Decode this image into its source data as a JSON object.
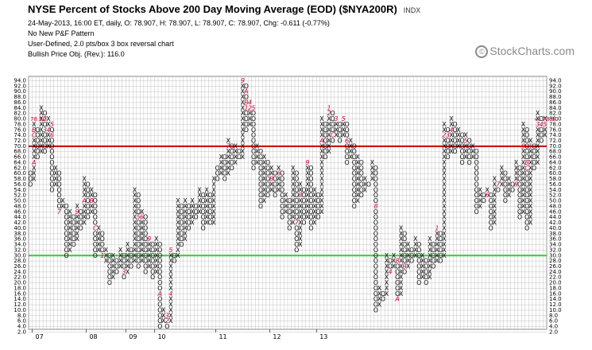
{
  "header": {
    "title": "NYSE Percent of Stocks Above 200 Day Moving Average (EOD) ($NYA200R)",
    "ticker": "INDX",
    "line1": "24-May-2013, 16:00 ET, daily, O: 78.907, H: 78.907, L: 78.907, C: 78.907, Chg: -0.611 (-0.77%)",
    "line2": "No New P&F Pattern",
    "line3": "User-Defined, 2.0 pts/box 3 box reversal chart",
    "line4": "Bullish Price Obj. (Rev.): 116.0"
  },
  "logo": {
    "text": "StockCharts.com",
    "icon": "copyright-icon"
  },
  "colors": {
    "x": "#000000",
    "o": "#000000",
    "month": "#cc0033",
    "red_line": "#cc0000",
    "green_line": "#33cc33",
    "grid": "#b4b4b4"
  },
  "chart_data": {
    "type": "point-and-figure",
    "box_size": 2,
    "reversal": 3,
    "ylim": [
      2,
      94
    ],
    "y_ticks": [
      2,
      4,
      6,
      8,
      10,
      12,
      14,
      16,
      18,
      20,
      22,
      24,
      26,
      28,
      30,
      32,
      34,
      36,
      38,
      40,
      42,
      44,
      46,
      48,
      50,
      52,
      54,
      56,
      58,
      60,
      62,
      64,
      66,
      68,
      70,
      72,
      74,
      76,
      78,
      80,
      82,
      84,
      86,
      88,
      90,
      92,
      94
    ],
    "y_tick_labels": [
      "2.0",
      "4.0",
      "6.0",
      "8.0",
      "10.0",
      "12.0",
      "14.0",
      "16.0",
      "18.0",
      "20.0",
      "22.0",
      "24.0",
      "26.0",
      "28.0",
      "30.0",
      "32.0",
      "34.0",
      "36.0",
      "38.0",
      "40.0",
      "42.0",
      "44.0",
      "46.0",
      "48.0",
      "50.0",
      "52.0",
      "54.0",
      "56.0",
      "58.0",
      "60.0",
      "62.0",
      "64.0",
      "66.0",
      "68.0",
      "70.0",
      "72.0",
      "74.0",
      "76.0",
      "78.0",
      "80.0",
      "82.0",
      "84.0",
      "86.0",
      "88.0",
      "90.0",
      "92.0",
      "94.0"
    ],
    "x_labels": [
      "07",
      "08",
      "09",
      "10",
      "11",
      "12",
      "13"
    ],
    "x_label_columns": [
      1,
      16,
      27,
      35,
      52,
      67,
      80
    ],
    "horizontal_lines": [
      {
        "name": "upper",
        "value": 69,
        "color": "red"
      },
      {
        "name": "lower",
        "value": 29,
        "color": "green"
      }
    ],
    "last_price_label": "78.90",
    "last_price": 78.9,
    "columns": [
      {
        "t": "O",
        "lo": 56,
        "hi": 60
      },
      {
        "t": "X",
        "lo": 58,
        "hi": 78,
        "marks": [
          [
            74,
            "C"
          ],
          [
            64,
            "A"
          ],
          [
            76,
            "B"
          ]
        ]
      },
      {
        "t": "O",
        "lo": 66,
        "hi": 76
      },
      {
        "t": "X",
        "lo": 68,
        "hi": 84
      },
      {
        "t": "O",
        "lo": 68,
        "hi": 82,
        "marks": [
          [
            80,
            "2"
          ],
          [
            76,
            "3"
          ]
        ]
      },
      {
        "t": "X",
        "lo": 70,
        "hi": 80,
        "marks": [
          [
            76,
            "4"
          ]
        ]
      },
      {
        "t": "O",
        "lo": 54,
        "hi": 78,
        "marks": [
          [
            78,
            "5"
          ],
          [
            74,
            "6"
          ]
        ]
      },
      {
        "t": "X",
        "lo": 56,
        "hi": 62
      },
      {
        "t": "O",
        "lo": 46,
        "hi": 60,
        "marks": [
          [
            46,
            "7"
          ]
        ]
      },
      {
        "t": "X",
        "lo": 48,
        "hi": 50
      },
      {
        "t": "O",
        "lo": 30,
        "hi": 48
      },
      {
        "t": "X",
        "lo": 32,
        "hi": 46
      },
      {
        "t": "O",
        "lo": 34,
        "hi": 44
      },
      {
        "t": "X",
        "lo": 36,
        "hi": 48,
        "marks": [
          [
            46,
            "9"
          ]
        ]
      },
      {
        "t": "O",
        "lo": 40,
        "hi": 46
      },
      {
        "t": "X",
        "lo": 42,
        "hi": 58,
        "marks": [
          [
            50,
            "A"
          ]
        ]
      },
      {
        "t": "O",
        "lo": 44,
        "hi": 56
      },
      {
        "t": "X",
        "lo": 46,
        "hi": 54,
        "marks": [
          [
            50,
            "B"
          ]
        ]
      },
      {
        "t": "O",
        "lo": 30,
        "hi": 52,
        "marks": [
          [
            40,
            "C"
          ]
        ]
      },
      {
        "t": "X",
        "lo": 32,
        "hi": 40
      },
      {
        "t": "O",
        "lo": 30,
        "hi": 38,
        "marks": [
          [
            30,
            "1"
          ]
        ]
      },
      {
        "t": "X",
        "lo": 28,
        "hi": 32
      },
      {
        "t": "O",
        "lo": 20,
        "hi": 30
      },
      {
        "t": "X",
        "lo": 22,
        "hi": 30
      },
      {
        "t": "O",
        "lo": 24,
        "hi": 28
      },
      {
        "t": "X",
        "lo": 26,
        "hi": 32
      },
      {
        "t": "O",
        "lo": 22,
        "hi": 30,
        "marks": [
          [
            24,
            "3"
          ]
        ]
      },
      {
        "t": "X",
        "lo": 24,
        "hi": 34
      },
      {
        "t": "O",
        "lo": 26,
        "hi": 32
      },
      {
        "t": "X",
        "lo": 28,
        "hi": 54
      },
      {
        "t": "O",
        "lo": 26,
        "hi": 52,
        "marks": [
          [
            44,
            "5"
          ]
        ]
      },
      {
        "t": "X",
        "lo": 28,
        "hi": 46,
        "marks": [
          [
            44,
            "6"
          ]
        ]
      },
      {
        "t": "O",
        "lo": 24,
        "hi": 44
      },
      {
        "t": "X",
        "lo": 26,
        "hi": 36,
        "marks": [
          [
            36,
            "9"
          ]
        ]
      },
      {
        "t": "O",
        "lo": 22,
        "hi": 34
      },
      {
        "t": "X",
        "lo": 24,
        "hi": 36
      },
      {
        "t": "O",
        "lo": 4,
        "hi": 34,
        "marks": [
          [
            16,
            "A"
          ]
        ]
      },
      {
        "t": "X",
        "lo": 6,
        "hi": 10
      },
      {
        "t": "O",
        "lo": 4,
        "hi": 8,
        "marks": [
          [
            8,
            "3"
          ],
          [
            6,
            "2"
          ]
        ]
      },
      {
        "t": "X",
        "lo": 6,
        "hi": 32,
        "marks": [
          [
            16,
            "4"
          ],
          [
            32,
            "5"
          ]
        ]
      },
      {
        "t": "O",
        "lo": 28,
        "hi": 30
      },
      {
        "t": "X",
        "lo": 30,
        "hi": 50
      },
      {
        "t": "O",
        "lo": 34,
        "hi": 48
      },
      {
        "t": "X",
        "lo": 36,
        "hi": 50
      },
      {
        "t": "O",
        "lo": 40,
        "hi": 48
      },
      {
        "t": "X",
        "lo": 42,
        "hi": 50
      },
      {
        "t": "O",
        "lo": 44,
        "hi": 48
      },
      {
        "t": "X",
        "lo": 46,
        "hi": 54
      },
      {
        "t": "O",
        "lo": 40,
        "hi": 52
      },
      {
        "t": "X",
        "lo": 42,
        "hi": 54
      },
      {
        "t": "O",
        "lo": 42,
        "hi": 52
      },
      {
        "t": "X",
        "lo": 42,
        "hi": 58
      },
      {
        "t": "O",
        "lo": 58,
        "hi": 62
      },
      {
        "t": "X",
        "lo": 60,
        "hi": 66
      },
      {
        "t": "O",
        "lo": 58,
        "hi": 66
      },
      {
        "t": "X",
        "lo": 60,
        "hi": 72,
        "marks": [
          [
            70,
            "7"
          ]
        ]
      },
      {
        "t": "O",
        "lo": 62,
        "hi": 70
      },
      {
        "t": "X",
        "lo": 64,
        "hi": 70
      },
      {
        "t": "O",
        "lo": 66,
        "hi": 68
      },
      {
        "t": "X",
        "lo": 66,
        "hi": 94,
        "marks": [
          [
            94,
            "9"
          ]
        ]
      },
      {
        "t": "O",
        "lo": 76,
        "hi": 92,
        "marks": [
          [
            90,
            "A"
          ],
          [
            86,
            "B"
          ],
          [
            84,
            "1"
          ]
        ]
      },
      {
        "t": "X",
        "lo": 78,
        "hi": 86,
        "marks": [
          [
            86,
            "4"
          ],
          [
            84,
            "2"
          ]
        ]
      },
      {
        "t": "O",
        "lo": 62,
        "hi": 84,
        "marks": [
          [
            84,
            "5"
          ]
        ]
      },
      {
        "t": "X",
        "lo": 64,
        "hi": 70
      },
      {
        "t": "O",
        "lo": 48,
        "hi": 68
      },
      {
        "t": "X",
        "lo": 50,
        "hi": 66
      },
      {
        "t": "O",
        "lo": 52,
        "hi": 64
      },
      {
        "t": "X",
        "lo": 54,
        "hi": 62,
        "marks": [
          [
            58,
            "8"
          ]
        ]
      },
      {
        "t": "O",
        "lo": 52,
        "hi": 60
      },
      {
        "t": "X",
        "lo": 54,
        "hi": 62,
        "marks": [
          [
            60,
            "6"
          ]
        ]
      },
      {
        "t": "O",
        "lo": 44,
        "hi": 60
      },
      {
        "t": "X",
        "lo": 46,
        "hi": 52
      },
      {
        "t": "O",
        "lo": 40,
        "hi": 50
      },
      {
        "t": "X",
        "lo": 42,
        "hi": 62
      },
      {
        "t": "O",
        "lo": 32,
        "hi": 60,
        "marks": [
          [
            42,
            "7"
          ]
        ]
      },
      {
        "t": "X",
        "lo": 34,
        "hi": 56,
        "marks": [
          [
            52,
            "8"
          ]
        ]
      },
      {
        "t": "O",
        "lo": 42,
        "hi": 54
      },
      {
        "t": "X",
        "lo": 44,
        "hi": 64,
        "marks": [
          [
            64,
            "9"
          ]
        ]
      },
      {
        "t": "O",
        "lo": 40,
        "hi": 62
      },
      {
        "t": "X",
        "lo": 42,
        "hi": 54
      },
      {
        "t": "O",
        "lo": 44,
        "hi": 52
      },
      {
        "t": "X",
        "lo": 46,
        "hi": 80,
        "marks": [
          [
            72,
            "A"
          ]
        ]
      },
      {
        "t": "O",
        "lo": 66,
        "hi": 78
      },
      {
        "t": "X",
        "lo": 68,
        "hi": 84,
        "marks": [
          [
            82,
            "2"
          ],
          [
            84,
            "1"
          ]
        ]
      },
      {
        "t": "O",
        "lo": 72,
        "hi": 82,
        "marks": [
          [
            74,
            "C"
          ]
        ]
      },
      {
        "t": "X",
        "lo": 74,
        "hi": 80,
        "marks": [
          [
            80,
            "3"
          ]
        ]
      },
      {
        "t": "O",
        "lo": 72,
        "hi": 78
      },
      {
        "t": "X",
        "lo": 74,
        "hi": 80,
        "marks": [
          [
            80,
            "5"
          ]
        ]
      },
      {
        "t": "O",
        "lo": 64,
        "hi": 78,
        "marks": [
          [
            72,
            "6"
          ]
        ]
      },
      {
        "t": "X",
        "lo": 66,
        "hi": 72
      },
      {
        "t": "O",
        "lo": 48,
        "hi": 70
      },
      {
        "t": "X",
        "lo": 50,
        "hi": 66
      },
      {
        "t": "O",
        "lo": 52,
        "hi": 64
      },
      {
        "t": "X",
        "lo": 54,
        "hi": 58
      },
      {
        "t": "O",
        "lo": 56,
        "hi": 56
      },
      {
        "t": "X",
        "lo": 58,
        "hi": 64
      },
      {
        "t": "O",
        "lo": 10,
        "hi": 62,
        "marks": [
          [
            48,
            "8"
          ]
        ]
      },
      {
        "t": "X",
        "lo": 12,
        "hi": 18
      },
      {
        "t": "O",
        "lo": 14,
        "hi": 16
      },
      {
        "t": "X",
        "lo": 16,
        "hi": 30
      },
      {
        "t": "O",
        "lo": 24,
        "hi": 28,
        "marks": [
          [
            24,
            "4"
          ]
        ]
      },
      {
        "t": "X",
        "lo": 26,
        "hi": 30
      },
      {
        "t": "O",
        "lo": 14,
        "hi": 28,
        "marks": [
          [
            14,
            "A"
          ],
          [
            28,
            "8"
          ]
        ]
      },
      {
        "t": "X",
        "lo": 16,
        "hi": 40
      },
      {
        "t": "O",
        "lo": 24,
        "hi": 38,
        "marks": [
          [
            26,
            "B"
          ]
        ]
      },
      {
        "t": "X",
        "lo": 26,
        "hi": 34
      },
      {
        "t": "O",
        "lo": 28,
        "hi": 32
      },
      {
        "t": "X",
        "lo": 30,
        "hi": 36
      },
      {
        "t": "O",
        "lo": 20,
        "hi": 34
      },
      {
        "t": "X",
        "lo": 22,
        "hi": 30
      },
      {
        "t": "O",
        "lo": 20,
        "hi": 28,
        "marks": [
          [
            30,
            "C"
          ]
        ]
      },
      {
        "t": "X",
        "lo": 22,
        "hi": 36
      },
      {
        "t": "O",
        "lo": 26,
        "hi": 34
      },
      {
        "t": "X",
        "lo": 28,
        "hi": 40,
        "marks": [
          [
            40,
            "1"
          ]
        ]
      },
      {
        "t": "O",
        "lo": 28,
        "hi": 38
      },
      {
        "t": "X",
        "lo": 30,
        "hi": 78,
        "marks": [
          [
            74,
            "2"
          ]
        ]
      },
      {
        "t": "O",
        "lo": 66,
        "hi": 76,
        "marks": [
          [
            74,
            "3"
          ]
        ]
      },
      {
        "t": "X",
        "lo": 68,
        "hi": 80,
        "marks": [
          [
            76,
            "4"
          ]
        ]
      },
      {
        "t": "O",
        "lo": 68,
        "hi": 78
      },
      {
        "t": "X",
        "lo": 70,
        "hi": 76
      },
      {
        "t": "O",
        "lo": 64,
        "hi": 74
      },
      {
        "t": "X",
        "lo": 66,
        "hi": 74,
        "marks": [
          [
            72,
            "5"
          ]
        ]
      },
      {
        "t": "O",
        "lo": 64,
        "hi": 72
      },
      {
        "t": "X",
        "lo": 66,
        "hi": 70
      },
      {
        "t": "O",
        "lo": 46,
        "hi": 68
      },
      {
        "t": "X",
        "lo": 48,
        "hi": 54
      },
      {
        "t": "O",
        "lo": 50,
        "hi": 52
      },
      {
        "t": "X",
        "lo": 52,
        "hi": 54,
        "marks": [
          [
            52,
            "6"
          ]
        ]
      },
      {
        "t": "O",
        "lo": 40,
        "hi": 52
      },
      {
        "t": "X",
        "lo": 42,
        "hi": 58
      },
      {
        "t": "O",
        "lo": 54,
        "hi": 56,
        "marks": [
          [
            56,
            "7"
          ]
        ]
      },
      {
        "t": "X",
        "lo": 56,
        "hi": 62
      },
      {
        "t": "O",
        "lo": 50,
        "hi": 60
      },
      {
        "t": "X",
        "lo": 52,
        "hi": 58
      },
      {
        "t": "O",
        "lo": 54,
        "hi": 56
      },
      {
        "t": "X",
        "lo": 56,
        "hi": 64,
        "marks": [
          [
            56,
            "8"
          ]
        ]
      },
      {
        "t": "O",
        "lo": 44,
        "hi": 62
      },
      {
        "t": "X",
        "lo": 46,
        "hi": 78,
        "marks": [
          [
            70,
            "9"
          ]
        ]
      },
      {
        "t": "O",
        "lo": 40,
        "hi": 76,
        "marks": [
          [
            64,
            "B"
          ],
          [
            62,
            "C"
          ]
        ]
      },
      {
        "t": "X",
        "lo": 42,
        "hi": 72,
        "marks": [
          [
            70,
            "1"
          ]
        ]
      },
      {
        "t": "O",
        "lo": 62,
        "hi": 70
      },
      {
        "t": "X",
        "lo": 64,
        "hi": 82,
        "marks": [
          [
            78,
            "3"
          ]
        ]
      },
      {
        "t": "O",
        "lo": 72,
        "hi": 80,
        "marks": [
          [
            78,
            "4"
          ]
        ]
      },
      {
        "t": "X",
        "lo": 74,
        "hi": 80,
        "marks": [
          [
            78,
            "5"
          ]
        ]
      }
    ]
  }
}
